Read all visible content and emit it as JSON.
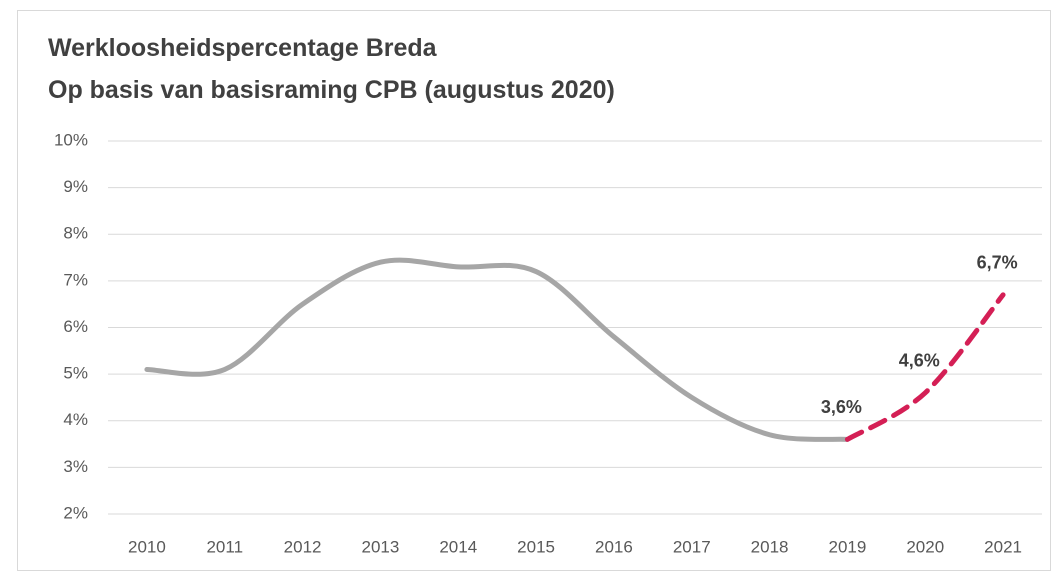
{
  "chart_data": {
    "type": "line",
    "title": "Werkloosheidspercentage Breda",
    "subtitle": "Op basis van basisraming CPB (augustus 2020)",
    "categories": [
      "2010",
      "2011",
      "2012",
      "2013",
      "2014",
      "2015",
      "2016",
      "2017",
      "2018",
      "2019",
      "2020",
      "2021"
    ],
    "series": [
      {
        "color": "#a6a6a6",
        "dashed": false,
        "values": [
          5.1,
          5.1,
          6.5,
          7.4,
          7.3,
          7.2,
          5.8,
          4.5,
          3.7,
          3.6,
          null,
          null
        ]
      },
      {
        "color": "#d41f55",
        "dashed": true,
        "values": [
          null,
          null,
          null,
          null,
          null,
          null,
          null,
          null,
          null,
          3.6,
          4.6,
          6.7
        ],
        "value_labels": [
          null,
          null,
          null,
          null,
          null,
          null,
          null,
          null,
          null,
          "3,6%",
          "4,6%",
          "6,7%"
        ]
      }
    ],
    "ylim": [
      2,
      10
    ],
    "yticks": [
      {
        "value": 2,
        "label": "2%"
      },
      {
        "value": 3,
        "label": "3%"
      },
      {
        "value": 4,
        "label": "4%"
      },
      {
        "value": 5,
        "label": "5%"
      },
      {
        "value": 6,
        "label": "6%"
      },
      {
        "value": 7,
        "label": "7%"
      },
      {
        "value": 8,
        "label": "8%"
      },
      {
        "value": 9,
        "label": "9%"
      },
      {
        "value": 10,
        "label": "10%"
      }
    ],
    "grid": true
  }
}
